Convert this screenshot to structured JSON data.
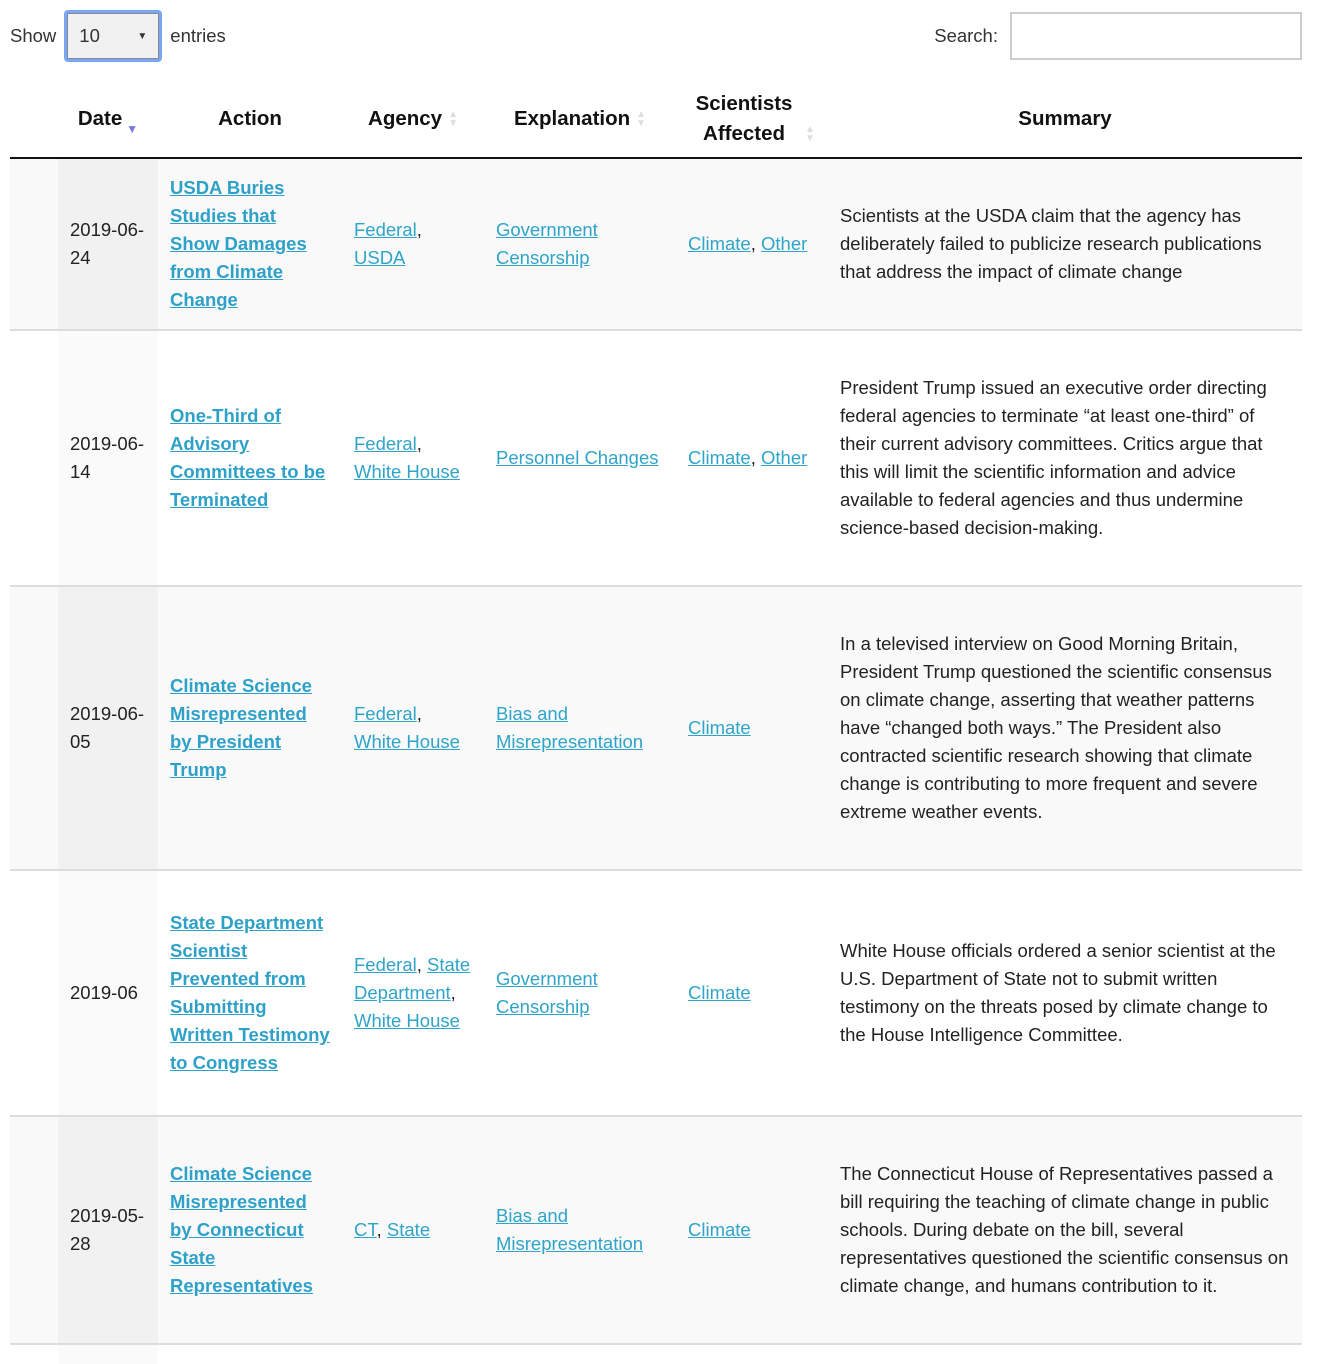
{
  "length_control": {
    "show_label": "Show",
    "value": "10",
    "entries_label": "entries"
  },
  "search": {
    "label": "Search:",
    "value": "",
    "placeholder": ""
  },
  "columns": [
    "",
    "Date",
    "Action",
    "Agency",
    "Explanation",
    "Scientists Affected",
    "Summary"
  ],
  "sorting": {
    "column": "Date",
    "direction": "descending",
    "accent": "#7b78e0"
  },
  "colors": {
    "link": "#2fa4c9",
    "odd_row": "#f9f9f9",
    "sorted_col": "#f1f1f1"
  },
  "rows": [
    {
      "date": "2019-06-24",
      "action": "USDA Buries Studies that Show Damages from Climate Change",
      "agency": [
        "Federal",
        "USDA"
      ],
      "explanation": [
        "Government Censorship"
      ],
      "scientists": [
        "Climate",
        "Other"
      ],
      "summary": "Scientists at the USDA claim that the agency has deliberately failed to publicize research publications that address the impact of climate change"
    },
    {
      "date": "2019-06-14",
      "action": "One-Third of Advisory Committees to be Terminated",
      "agency": [
        "Federal",
        "White House"
      ],
      "explanation": [
        "Personnel Changes"
      ],
      "scientists": [
        "Climate",
        "Other"
      ],
      "summary": "President Trump issued an executive order directing federal agencies to terminate “at least one-third” of their current advisory committees. Critics argue that this will limit the scientific information and advice available to federal agencies and thus undermine science-based decision-making."
    },
    {
      "date": "2019-06-05",
      "action": "Climate Science Misrepresented by President Trump",
      "agency": [
        "Federal",
        "White House"
      ],
      "explanation": [
        "Bias and Misrepresentation"
      ],
      "scientists": [
        "Climate"
      ],
      "summary": "In a televised interview on Good Morning Britain, President Trump questioned the scientific consensus on climate change, asserting that weather patterns have “changed both ways.” The President also contracted scientific research showing that climate change is contributing to more frequent and severe extreme weather events."
    },
    {
      "date": "2019-06",
      "action": "State Department Scientist Prevented from Submitting Written Testimony to Congress",
      "agency": [
        "Federal",
        "State Department",
        "White House"
      ],
      "explanation": [
        "Government Censorship"
      ],
      "scientists": [
        "Climate"
      ],
      "summary": "White House officials ordered a senior scientist at the U.S. Department of State not to submit written testimony on the threats posed by climate change to the House Intelligence Committee."
    },
    {
      "date": "2019-05-28",
      "action": "Climate Science Misrepresented by Connecticut State Representatives",
      "agency": [
        "CT",
        "State"
      ],
      "explanation": [
        "Bias and Misrepresentation"
      ],
      "scientists": [
        "Climate"
      ],
      "summary": "The Connecticut House of Representatives passed a bill requiring the teaching of climate change in public schools. During debate on the bill, several representatives questioned the scientific consensus on climate change, and humans contribution to it."
    }
  ]
}
